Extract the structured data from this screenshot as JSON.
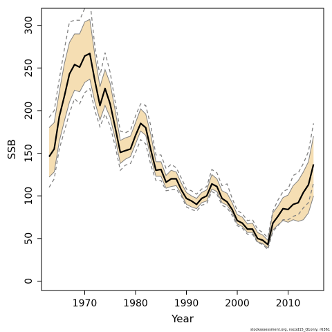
{
  "chart_data": {
    "type": "line",
    "xlabel": "Year",
    "ylabel": "SSB",
    "xlim": [
      1961.5,
      2017
    ],
    "ylim": [
      -11,
      320
    ],
    "x_ticks": [
      1970,
      1980,
      1990,
      2000,
      2010
    ],
    "y_ticks": [
      0,
      50,
      100,
      150,
      200,
      250,
      300
    ],
    "grid": false,
    "x": [
      1963,
      1964,
      1965,
      1966,
      1967,
      1968,
      1969,
      1970,
      1971,
      1972,
      1973,
      1974,
      1975,
      1976,
      1977,
      1978,
      1979,
      1980,
      1981,
      1982,
      1983,
      1984,
      1985,
      1986,
      1987,
      1988,
      1989,
      1990,
      1991,
      1992,
      1993,
      1994,
      1995,
      1996,
      1997,
      1998,
      1999,
      2000,
      2001,
      2002,
      2003,
      2004,
      2005,
      2006,
      2007,
      2008,
      2009,
      2010,
      2011,
      2012,
      2013,
      2014,
      2015
    ],
    "series": [
      {
        "role": "estimate",
        "values": [
          146,
          155,
          193,
          217,
          243,
          254,
          251,
          264,
          267,
          235,
          206,
          226,
          208,
          180,
          151,
          153,
          155,
          171,
          185,
          180,
          154,
          130,
          131,
          116,
          120,
          120,
          107,
          97,
          94,
          90,
          97,
          100,
          114,
          111,
          97,
          93,
          84,
          71,
          68,
          61,
          61,
          50,
          48,
          43,
          68,
          76,
          85,
          84,
          90,
          92,
          104,
          113,
          137
        ]
      },
      {
        "role": "lower-dashed",
        "values": [
          110,
          120,
          155,
          176,
          197,
          214,
          208,
          221,
          226,
          200,
          181,
          196,
          182,
          158,
          130,
          136,
          138,
          151,
          166,
          161,
          136,
          118,
          118,
          106,
          107,
          108,
          100,
          87,
          84,
          82,
          89,
          91,
          105,
          102,
          89,
          86,
          77,
          65,
          62,
          55,
          55,
          45,
          43,
          37,
          58,
          65,
          72,
          72,
          76,
          78,
          86,
          92,
          115
        ]
      },
      {
        "role": "upper-dashed",
        "values": [
          192,
          200,
          237,
          272,
          304,
          306,
          306,
          320,
          330,
          275,
          241,
          268,
          245,
          210,
          176,
          174,
          177,
          194,
          208,
          206,
          182,
          148,
          148,
          132,
          137,
          133,
          121,
          108,
          106,
          102,
          108,
          111,
          131,
          127,
          112,
          114,
          97,
          83,
          79,
          71,
          72,
          61,
          57,
          51,
          82,
          95,
          105,
          108,
          124,
          127,
          138,
          152,
          185
        ]
      },
      {
        "role": "band-lower",
        "values": [
          122,
          128,
          164,
          188,
          210,
          224,
          222,
          233,
          237,
          210,
          189,
          206,
          192,
          167,
          138,
          143,
          146,
          161,
          176,
          171,
          144,
          123,
          123,
          109,
          111,
          112,
          102,
          90,
          87,
          85,
          92,
          94,
          108,
          105,
          92,
          89,
          80,
          67,
          64,
          57,
          57,
          46,
          44,
          39,
          60,
          66,
          71,
          69,
          72,
          70,
          72,
          80,
          100
        ]
      },
      {
        "role": "band-upper",
        "values": [
          180,
          186,
          222,
          255,
          280,
          290,
          290,
          304,
          307,
          265,
          228,
          248,
          232,
          200,
          165,
          168,
          170,
          186,
          202,
          196,
          172,
          140,
          140,
          124,
          130,
          128,
          115,
          104,
          100,
          97,
          104,
          107,
          125,
          120,
          106,
          103,
          92,
          78,
          75,
          67,
          68,
          57,
          54,
          48,
          80,
          88,
          98,
          101,
          112,
          118,
          128,
          140,
          170
        ]
      }
    ],
    "colors": {
      "band": "#f5deb3",
      "estimate": "#000000",
      "dashed": "#808080",
      "thin-band-edge": "#808080"
    },
    "footer_text": "stockassessment.org, nscod15_Q1only, r6361"
  }
}
